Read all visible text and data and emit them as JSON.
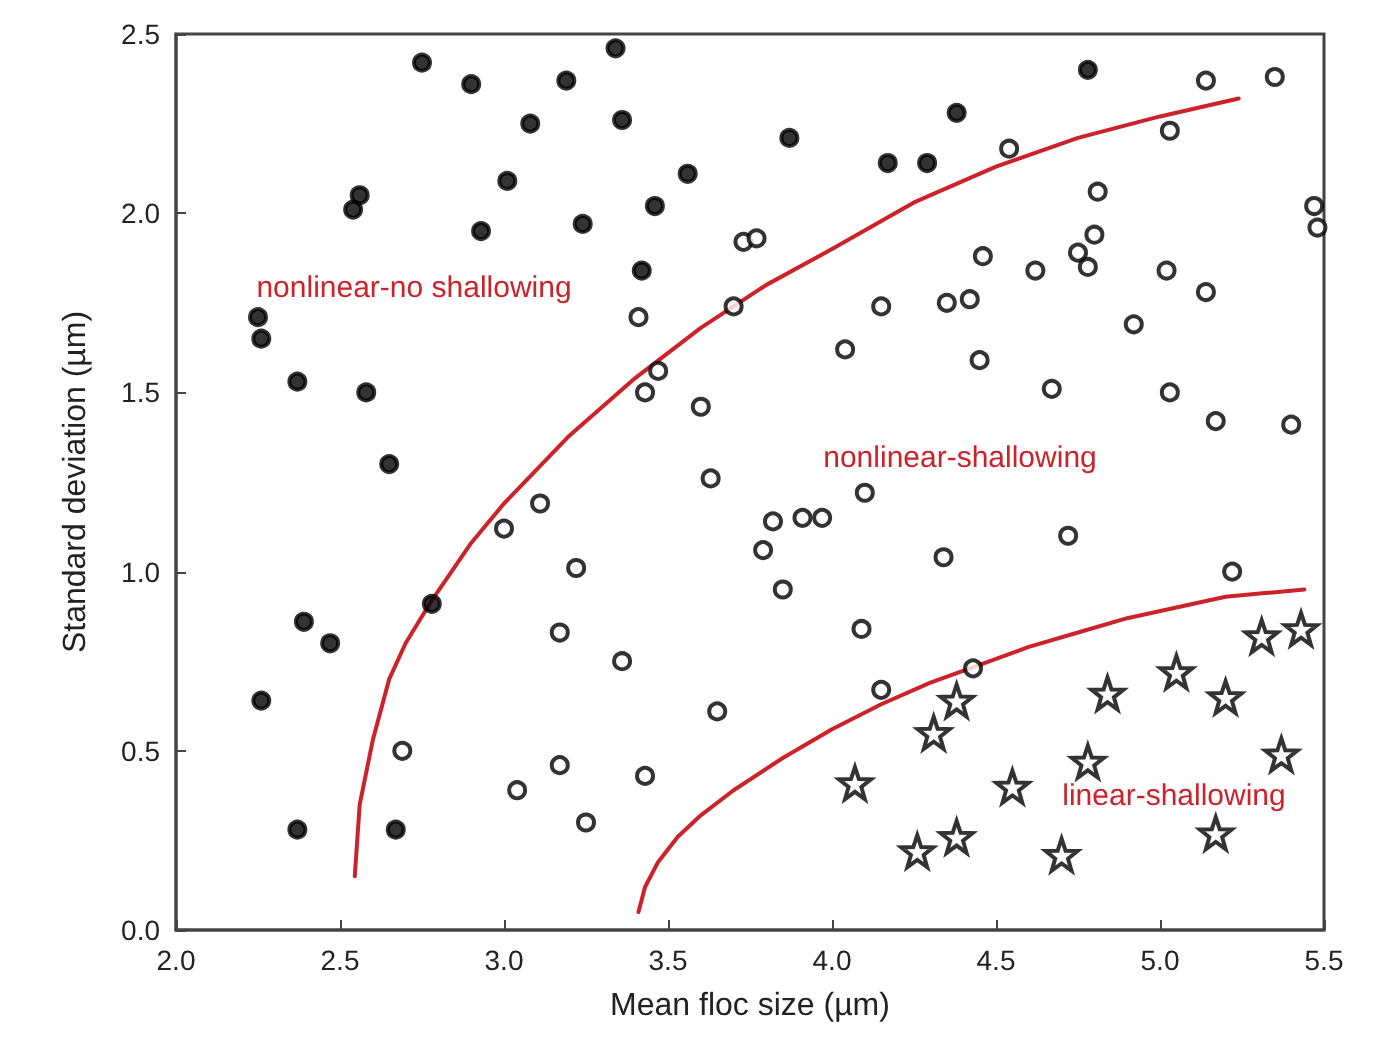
{
  "chart_data": {
    "type": "scatter",
    "xlabel": "Mean floc size (µm)",
    "ylabel": "Standard deviation (µm)",
    "xlim": [
      2.0,
      5.5
    ],
    "xticks": [
      {
        "value": 2.0,
        "label": "2.0"
      },
      {
        "value": 2.5,
        "label": "2.5"
      },
      {
        "value": 3.0,
        "label": "3.0"
      },
      {
        "value": 3.5,
        "label": "3.5"
      },
      {
        "value": 4.0,
        "label": "4.0"
      },
      {
        "value": 4.5,
        "label": "4.5"
      },
      {
        "value": 5.0,
        "label": "5.0"
      },
      {
        "value": 5.5,
        "label": "5.5"
      }
    ],
    "ylim": [
      0.0,
      2.5
    ],
    "yticks": [
      {
        "value": 0.0,
        "label": "0.0"
      },
      {
        "value": 0.5,
        "label": "0.5"
      },
      {
        "value": 1.0,
        "label": "1.0"
      },
      {
        "value": 1.5,
        "label": "1.5"
      },
      {
        "value": 2.0,
        "label": "2.0"
      },
      {
        "value": 2.5,
        "label": "2.5"
      }
    ],
    "grid": false,
    "annotations": [
      "nonlinear-no shallowing",
      "nonlinear-shallowing",
      "linear-shallowing"
    ],
    "series": [
      {
        "marker": "circle",
        "color": "#000000",
        "x": [
          2.75,
          2.9,
          3.19,
          3.34,
          3.08,
          3.36,
          2.56,
          2.54,
          3.01,
          3.56,
          3.46,
          2.93,
          3.24,
          3.42,
          2.25,
          2.26,
          2.37,
          2.58,
          2.65,
          3.87,
          4.17,
          4.29,
          4.38,
          4.78,
          2.78,
          2.39,
          2.47,
          2.26,
          2.37,
          2.67
        ],
        "values": [
          2.42,
          2.36,
          2.37,
          2.46,
          2.25,
          2.26,
          2.05,
          2.01,
          2.09,
          2.11,
          2.02,
          1.95,
          1.97,
          1.84,
          1.71,
          1.65,
          1.53,
          1.5,
          1.3,
          2.21,
          2.14,
          2.14,
          2.28,
          2.4,
          0.91,
          0.86,
          0.8,
          0.64,
          0.28,
          0.28
        ]
      },
      {
        "marker": "circle-open",
        "color": "#000000",
        "x": [
          3.73,
          3.77,
          3.41,
          3.7,
          3.47,
          3.43,
          3.6,
          3.63,
          4.54,
          5.14,
          5.35,
          5.03,
          4.81,
          4.8,
          4.75,
          4.78,
          4.46,
          4.62,
          5.02,
          5.14,
          5.47,
          5.48,
          4.15,
          4.35,
          4.42,
          4.04,
          4.45,
          4.92,
          4.67,
          5.03,
          5.17,
          5.4,
          3.11,
          3.0,
          3.22,
          3.17,
          3.36,
          3.65,
          2.69,
          3.17,
          3.04,
          3.43,
          3.25,
          3.79,
          3.82,
          3.91,
          3.97,
          4.1,
          3.85,
          4.34,
          4.72,
          5.22,
          4.09,
          4.15,
          4.43
        ],
        "values": [
          1.92,
          1.93,
          1.71,
          1.74,
          1.56,
          1.5,
          1.46,
          1.26,
          2.18,
          2.37,
          2.38,
          2.23,
          2.06,
          1.94,
          1.89,
          1.85,
          1.88,
          1.84,
          1.84,
          1.78,
          2.02,
          1.96,
          1.74,
          1.75,
          1.76,
          1.62,
          1.59,
          1.69,
          1.51,
          1.5,
          1.42,
          1.41,
          1.19,
          1.12,
          1.01,
          0.83,
          0.75,
          0.61,
          0.5,
          0.46,
          0.39,
          0.43,
          0.3,
          1.06,
          1.14,
          1.15,
          1.15,
          1.22,
          0.95,
          1.04,
          1.1,
          1.0,
          0.84,
          0.67,
          0.73
        ]
      },
      {
        "marker": "star-open",
        "color": "#000000",
        "x": [
          5.31,
          5.43,
          5.05,
          5.2,
          4.84,
          4.38,
          4.31,
          4.07,
          4.55,
          4.78,
          5.37,
          4.26,
          4.38,
          4.7,
          5.17
        ],
        "values": [
          0.82,
          0.84,
          0.72,
          0.65,
          0.66,
          0.64,
          0.55,
          0.41,
          0.4,
          0.47,
          0.49,
          0.22,
          0.26,
          0.21,
          0.27
        ]
      },
      {
        "type": "line",
        "marker": "none",
        "line_style": "solid",
        "color": "#cc2229",
        "x": [
          2.545,
          2.56,
          2.6,
          2.65,
          2.7,
          2.78,
          2.9,
          3.0,
          3.2,
          3.4,
          3.6,
          3.8,
          4.0,
          4.25,
          4.5,
          4.75,
          5.0,
          5.24
        ],
        "values": [
          0.15,
          0.35,
          0.53,
          0.7,
          0.8,
          0.92,
          1.08,
          1.19,
          1.38,
          1.54,
          1.68,
          1.8,
          1.9,
          2.03,
          2.13,
          2.21,
          2.27,
          2.32
        ]
      },
      {
        "type": "line",
        "marker": "none",
        "line_style": "solid",
        "color": "#cc2229",
        "x": [
          3.41,
          3.43,
          3.47,
          3.53,
          3.6,
          3.7,
          3.85,
          4.0,
          4.15,
          4.3,
          4.45,
          4.6,
          4.75,
          4.9,
          5.05,
          5.2,
          5.32,
          5.44
        ],
        "values": [
          0.05,
          0.12,
          0.19,
          0.26,
          0.32,
          0.39,
          0.48,
          0.56,
          0.63,
          0.69,
          0.74,
          0.79,
          0.83,
          0.87,
          0.9,
          0.93,
          0.94,
          0.95
        ]
      }
    ]
  }
}
